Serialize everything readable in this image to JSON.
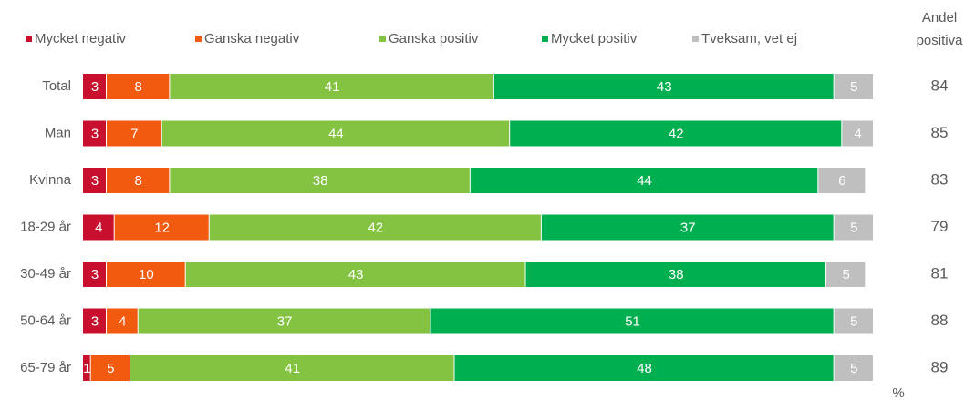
{
  "chart_data": {
    "type": "bar",
    "orientation": "horizontal",
    "stacked": true,
    "categories": [
      "Total",
      "Man",
      "Kvinna",
      "18-29 år",
      "30-49 år",
      "50-64 år",
      "65-79 år"
    ],
    "series": [
      {
        "name": "Mycket negativ",
        "color": "#c8102e",
        "values": [
          3,
          3,
          3,
          4,
          3,
          3,
          1
        ]
      },
      {
        "name": "Ganska negativ",
        "color": "#f15a0f",
        "values": [
          8,
          7,
          8,
          12,
          10,
          4,
          5
        ]
      },
      {
        "name": "Ganska positiv",
        "color": "#84c341",
        "values": [
          41,
          44,
          38,
          42,
          43,
          37,
          41
        ]
      },
      {
        "name": "Mycket positiv",
        "color": "#00b050",
        "values": [
          43,
          42,
          44,
          37,
          38,
          51,
          48
        ]
      },
      {
        "name": "Tveksam, vet ej",
        "color": "#bfbfbf",
        "values": [
          5,
          4,
          6,
          5,
          5,
          5,
          5
        ]
      }
    ],
    "xlim": [
      0,
      100
    ],
    "side_header": [
      "Andel",
      "positiva"
    ],
    "side_values": [
      84,
      85,
      83,
      79,
      81,
      88,
      89
    ],
    "unit": "%"
  }
}
